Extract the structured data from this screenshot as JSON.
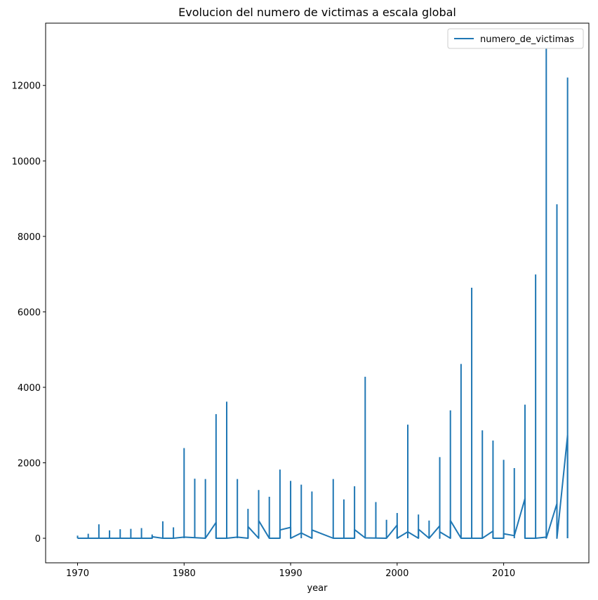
{
  "chart_data": {
    "type": "line",
    "title": "Evolucion del numero de victimas a escala global",
    "xlabel": "year",
    "ylabel": "",
    "xlim": [
      1967,
      2018
    ],
    "ylim": [
      -650,
      13650
    ],
    "xticks": [
      1970,
      1980,
      1990,
      2000,
      2010
    ],
    "yticks": [
      0,
      2000,
      4000,
      6000,
      8000,
      10000,
      12000
    ],
    "legend": {
      "position": "top-right",
      "entries": [
        "numero_de_victimas"
      ]
    },
    "series": [
      {
        "name": "numero_de_victimas",
        "color": "#1f77b4",
        "spikes": [
          [
            1970,
            70
          ],
          [
            1971,
            120
          ],
          [
            1972,
            370
          ],
          [
            1973,
            210
          ],
          [
            1974,
            240
          ],
          [
            1975,
            250
          ],
          [
            1976,
            270
          ],
          [
            1977,
            100
          ],
          [
            1978,
            450
          ],
          [
            1979,
            290
          ],
          [
            1980,
            2390
          ],
          [
            1981,
            1580
          ],
          [
            1982,
            1570
          ],
          [
            1983,
            3290
          ],
          [
            1984,
            3620
          ],
          [
            1985,
            1570
          ],
          [
            1986,
            780
          ],
          [
            1987,
            1280
          ],
          [
            1988,
            1100
          ],
          [
            1989,
            1820
          ],
          [
            1990,
            1520
          ],
          [
            1991,
            1420
          ],
          [
            1992,
            1240
          ],
          [
            1994,
            1570
          ],
          [
            1995,
            1030
          ],
          [
            1996,
            1380
          ],
          [
            1997,
            4280
          ],
          [
            1998,
            960
          ],
          [
            1999,
            490
          ],
          [
            2000,
            670
          ],
          [
            2001,
            3010
          ],
          [
            2002,
            630
          ],
          [
            2003,
            470
          ],
          [
            2004,
            2150
          ],
          [
            2005,
            3390
          ],
          [
            2006,
            4620
          ],
          [
            2007,
            6640
          ],
          [
            2008,
            2860
          ],
          [
            2009,
            2590
          ],
          [
            2010,
            2080
          ],
          [
            2011,
            1860
          ],
          [
            2012,
            3540
          ],
          [
            2013,
            6990
          ],
          [
            2014,
            13080
          ],
          [
            2015,
            8850
          ],
          [
            2016,
            12210
          ]
        ],
        "connectors": [
          [
            1970,
            0
          ],
          [
            1977,
            0
          ],
          [
            1977,
            40
          ],
          [
            1978,
            0
          ],
          [
            1979,
            0
          ],
          [
            1980,
            30
          ],
          [
            1982,
            0
          ],
          [
            1983,
            420
          ],
          [
            1983,
            0
          ],
          [
            1984,
            0
          ],
          [
            1985,
            30
          ],
          [
            1986,
            0
          ],
          [
            1986,
            310
          ],
          [
            1987,
            0
          ],
          [
            1987,
            470
          ],
          [
            1988,
            0
          ],
          [
            1989,
            0
          ],
          [
            1989,
            220
          ],
          [
            1990,
            290
          ],
          [
            1990,
            0
          ],
          [
            1991,
            140
          ],
          [
            1992,
            0
          ],
          [
            1992,
            220
          ],
          [
            1994,
            0
          ],
          [
            1996,
            0
          ],
          [
            1996,
            230
          ],
          [
            1997,
            10
          ],
          [
            1999,
            0
          ],
          [
            2000,
            350
          ],
          [
            2000,
            0
          ],
          [
            2001,
            170
          ],
          [
            2002,
            0
          ],
          [
            2002,
            240
          ],
          [
            2003,
            0
          ],
          [
            2004,
            330
          ],
          [
            2004,
            0
          ],
          [
            2004,
            170
          ],
          [
            2005,
            0
          ],
          [
            2005,
            470
          ],
          [
            2006,
            0
          ],
          [
            2008,
            0
          ],
          [
            2009,
            190
          ],
          [
            2009,
            0
          ],
          [
            2010,
            0
          ],
          [
            2010,
            120
          ],
          [
            2011,
            70
          ],
          [
            2012,
            1050
          ],
          [
            2012,
            0
          ],
          [
            2013,
            0
          ],
          [
            2014,
            30
          ],
          [
            2014,
            0
          ],
          [
            2015,
            920
          ],
          [
            2015,
            0
          ],
          [
            2016,
            2720
          ],
          [
            2016,
            0
          ]
        ]
      }
    ]
  }
}
